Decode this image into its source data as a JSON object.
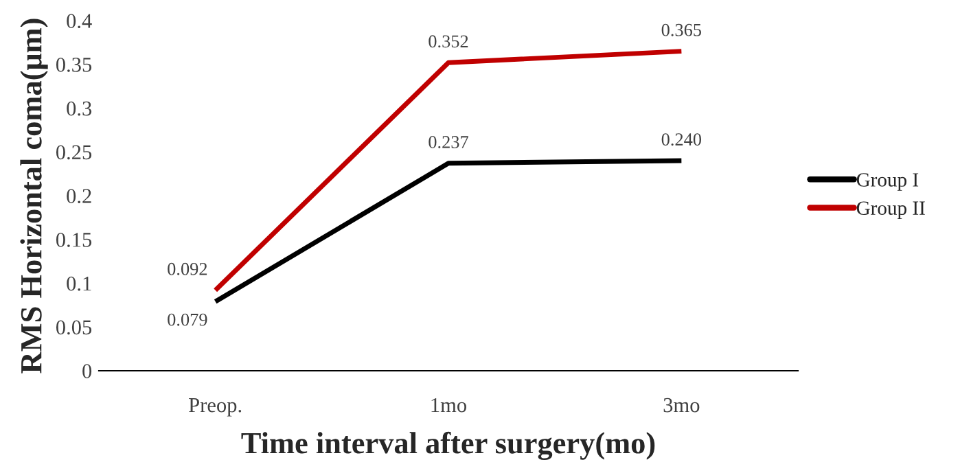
{
  "chart_data": {
    "type": "line",
    "xlabel": "Time interval after surgery(mo)",
    "ylabel": "RMS Horizontal coma(μm)",
    "categories": [
      "Preop.",
      "1mo",
      "3mo"
    ],
    "series": [
      {
        "name": "Group I",
        "color": "#000000",
        "values": [
          0.079,
          0.237,
          0.24
        ],
        "value_labels": [
          "0.079",
          "0.237",
          "0.240"
        ]
      },
      {
        "name": "Group II",
        "color": "#c00000",
        "values": [
          0.092,
          0.352,
          0.365
        ],
        "value_labels": [
          "0.092",
          "0.352",
          "0.365"
        ]
      }
    ],
    "ylim": [
      0,
      0.4
    ],
    "yticks": [
      {
        "value": 0,
        "label": "0"
      },
      0.05,
      0.1,
      0.15,
      0.2,
      0.25,
      0.3,
      0.35,
      0.4
    ],
    "grid": false,
    "legend": "right",
    "marker": "none",
    "line_style": "solid"
  }
}
